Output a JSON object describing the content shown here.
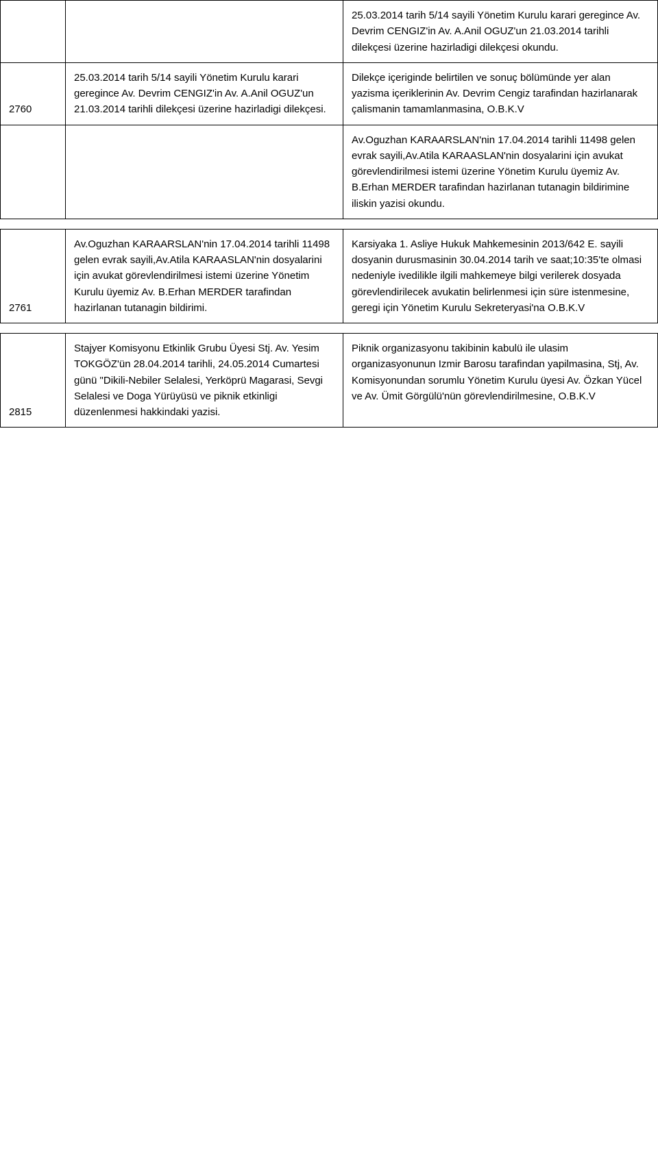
{
  "rows": [
    {
      "id": "",
      "mid": "",
      "right": "25.03.2014 tarih 5/14 sayili Yönetim Kurulu karari geregince Av. Devrim CENGIZ'in Av. A.Anil OGUZ'un 21.03.2014 tarihli dilekçesi üzerine hazirladigi dilekçesi okundu."
    },
    {
      "id": "2760",
      "mid": "25.03.2014 tarih 5/14 sayili Yönetim Kurulu karari geregince Av. Devrim CENGIZ'in Av. A.Anil OGUZ'un 21.03.2014 tarihli dilekçesi üzerine hazirladigi dilekçesi.",
      "right": "Dilekçe içeriginde belirtilen ve sonuç bölümünde yer alan yazisma içeriklerinin Av. Devrim Cengiz tarafindan hazirlanarak çalismanin tamamlanmasina, O.B.K.V"
    },
    {
      "id": "",
      "mid": "",
      "right": "Av.Oguzhan KARAARSLAN'nin 17.04.2014 tarihli 11498 gelen evrak sayili,Av.Atila KARAASLAN'nin dosyalarini için avukat görevlendirilmesi istemi üzerine Yönetim Kurulu üyemiz Av. B.Erhan MERDER tarafindan hazirlanan tutanagin bildirimine iliskin yazisi okundu."
    },
    {
      "id": "2761",
      "mid": "Av.Oguzhan KARAARSLAN'nin 17.04.2014 tarihli 11498 gelen evrak sayili,Av.Atila KARAASLAN'nin dosyalarini için avukat görevlendirilmesi istemi üzerine Yönetim Kurulu üyemiz Av. B.Erhan MERDER tarafindan hazirlanan tutanagin bildirimi.",
      "right": "Karsiyaka 1. Asliye Hukuk Mahkemesinin 2013/642 E. sayili dosyanin durusmasinin 30.04.2014 tarih ve saat;10:35'te olmasi nedeniyle ivedilikle ilgili mahkemeye bilgi verilerek dosyada görevlendirilecek avukatin belirlenmesi için süre istenmesine, geregi için Yönetim Kurulu Sekreteryasi'na O.B.K.V"
    },
    {
      "id": "2815",
      "mid": "Stajyer Komisyonu Etkinlik Grubu Üyesi Stj. Av. Yesim TOKGÖZ'ün 28.04.2014 tarihli, 24.05.2014 Cumartesi günü \"Dikili-Nebiler Selalesi, Yerköprü Magarasi, Sevgi Selalesi ve Doga Yürüyüsü ve piknik etkinligi düzenlenmesi hakkindaki yazisi.",
      "right": "Piknik organizasyonu takibinin kabulü ile ulasim organizasyonunun Izmir Barosu tarafindan yapilmasina, Stj, Av. Komisyonundan sorumlu Yönetim Kurulu üyesi Av. Özkan Yücel ve Av. Ümit Görgülü'nün görevlendirilmesine, O.B.K.V"
    }
  ]
}
